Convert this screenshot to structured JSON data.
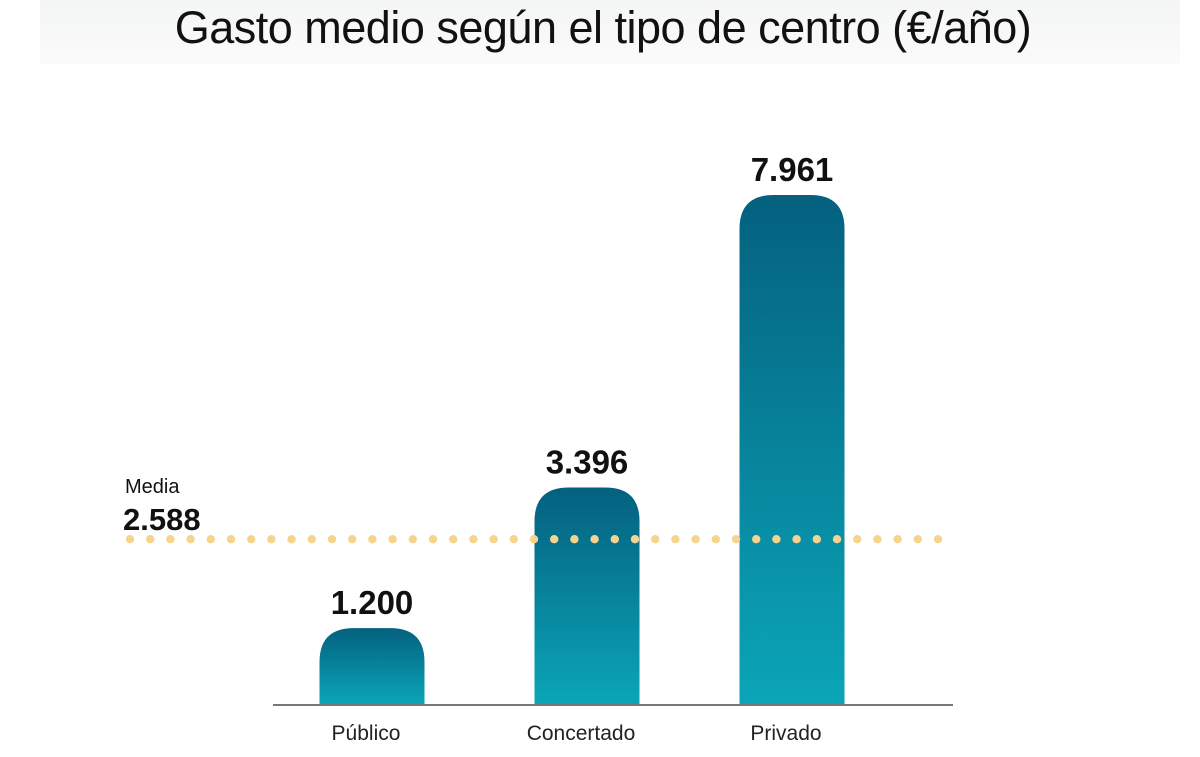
{
  "chart_data": {
    "type": "bar",
    "title": "Gasto medio según el tipo de centro (€/año)",
    "categories": [
      "Público",
      "Concertado",
      "Privado"
    ],
    "values": [
      1200,
      3396,
      7961
    ],
    "value_labels": [
      "1.200",
      "3.396",
      "7.961"
    ],
    "xlabel": "",
    "ylabel": "",
    "ylim": [
      0,
      7961
    ],
    "grid": false,
    "reference_line": {
      "label": "Media",
      "value": 2588,
      "value_label": "2.588",
      "style": "dotted"
    },
    "colors": {
      "bar_top": "#04617f",
      "bar_bottom": "#0ba5b8",
      "reference": "#f6d48e",
      "axis": "#777777"
    }
  }
}
